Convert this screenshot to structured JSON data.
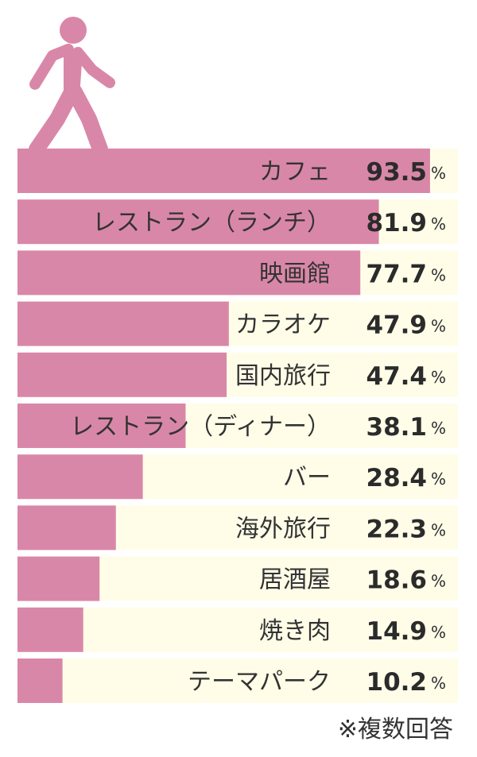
{
  "colors": {
    "bar": "#d987a8",
    "track": "#fffde8",
    "icon": "#d987a8"
  },
  "icon": "walking-person-icon",
  "footnote": "※複数回答",
  "chart_data": {
    "type": "bar",
    "orientation": "horizontal",
    "unit": "%",
    "xlim": [
      0,
      100
    ],
    "categories": [
      "カフェ",
      "レストラン（ランチ）",
      "映画館",
      "カラオケ",
      "国内旅行",
      "レストラン（ディナー）",
      "バー",
      "海外旅行",
      "居酒屋",
      "焼き肉",
      "テーマパーク"
    ],
    "values": [
      93.5,
      81.9,
      77.7,
      47.9,
      47.4,
      38.1,
      28.4,
      22.3,
      18.6,
      14.9,
      10.2
    ]
  }
}
